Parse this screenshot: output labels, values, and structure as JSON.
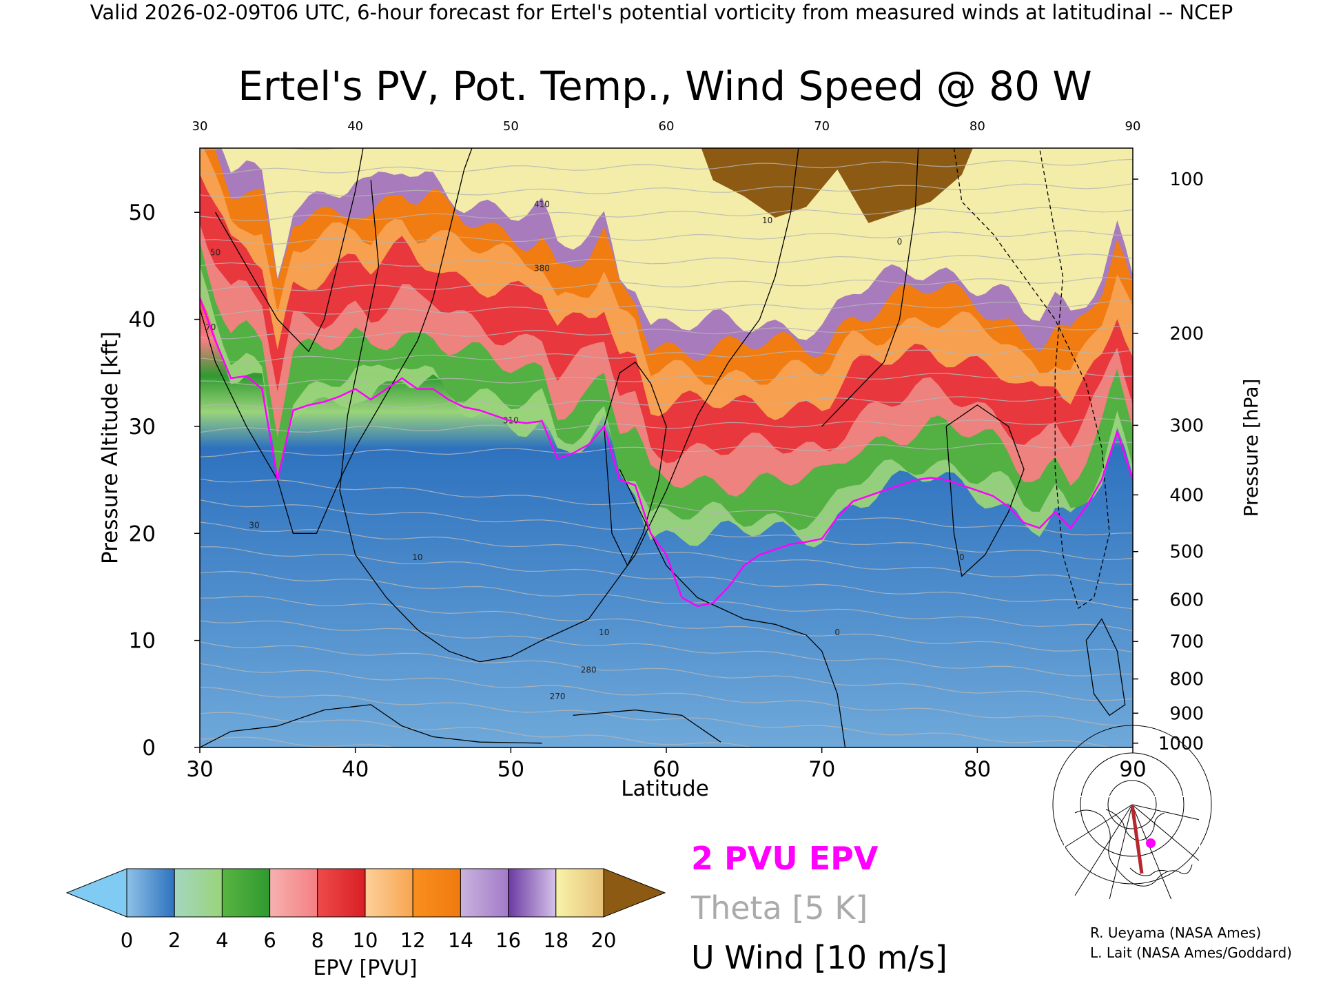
{
  "header": {
    "valid_line": "Valid 2026-02-09T06 UTC, 6-hour forecast for Ertel's potential vorticity from measured winds at latitudinal -- NCEP"
  },
  "chart_data": {
    "type": "heatmap",
    "title": "Ertel's PV, Pot. Temp., Wind Speed @ 80 W",
    "xlabel": "Latitude",
    "ylabel_left": "Pressure Altitude [kft]",
    "ylabel_right": "Pressure [hPa]",
    "xlim": [
      30,
      90
    ],
    "ylim": [
      0,
      56
    ],
    "x_ticks": [
      30,
      40,
      50,
      60,
      70,
      80,
      90
    ],
    "x_tick_labels": [
      "30",
      "40",
      "50",
      "60",
      "70",
      "80",
      "90"
    ],
    "top_x_tick_labels": [
      "30",
      "40",
      "50",
      "60",
      "70",
      "80",
      "90"
    ],
    "y_ticks": [
      0,
      10,
      20,
      30,
      40,
      50
    ],
    "y_tick_labels": [
      "0",
      "10",
      "20",
      "30",
      "40",
      "50"
    ],
    "pressure_ticks": [
      {
        "label": "100",
        "kft": 53.1
      },
      {
        "label": "200",
        "kft": 38.7
      },
      {
        "label": "300",
        "kft": 30.1
      },
      {
        "label": "400",
        "kft": 23.6
      },
      {
        "label": "500",
        "kft": 18.3
      },
      {
        "label": "600",
        "kft": 13.8
      },
      {
        "label": "700",
        "kft": 9.9
      },
      {
        "label": "800",
        "kft": 6.4
      },
      {
        "label": "900",
        "kft": 3.2
      },
      {
        "label": "1000",
        "kft": 0.4
      }
    ],
    "tropopause_2pvu_kft": [
      {
        "lat": 30,
        "kft": 42
      },
      {
        "lat": 31,
        "kft": 38
      },
      {
        "lat": 32,
        "kft": 34.5
      },
      {
        "lat": 33,
        "kft": 34.7
      },
      {
        "lat": 34,
        "kft": 33.5
      },
      {
        "lat": 35,
        "kft": 25
      },
      {
        "lat": 36,
        "kft": 31.5
      },
      {
        "lat": 37,
        "kft": 32
      },
      {
        "lat": 38,
        "kft": 32.3
      },
      {
        "lat": 39,
        "kft": 32.8
      },
      {
        "lat": 40,
        "kft": 33.5
      },
      {
        "lat": 41,
        "kft": 32.5
      },
      {
        "lat": 42,
        "kft": 33.5
      },
      {
        "lat": 43,
        "kft": 34.5
      },
      {
        "lat": 44,
        "kft": 33.5
      },
      {
        "lat": 45,
        "kft": 33.5
      },
      {
        "lat": 46,
        "kft": 32.5
      },
      {
        "lat": 47,
        "kft": 31.8
      },
      {
        "lat": 48,
        "kft": 31.5
      },
      {
        "lat": 49,
        "kft": 31
      },
      {
        "lat": 50,
        "kft": 30.5
      },
      {
        "lat": 51,
        "kft": 30.3
      },
      {
        "lat": 52,
        "kft": 30.5
      },
      {
        "lat": 53,
        "kft": 27
      },
      {
        "lat": 54,
        "kft": 27.5
      },
      {
        "lat": 55,
        "kft": 28.3
      },
      {
        "lat": 56,
        "kft": 30
      },
      {
        "lat": 57,
        "kft": 25
      },
      {
        "lat": 58,
        "kft": 24.5
      },
      {
        "lat": 59,
        "kft": 20
      },
      {
        "lat": 60,
        "kft": 18
      },
      {
        "lat": 61,
        "kft": 14
      },
      {
        "lat": 62,
        "kft": 13.2
      },
      {
        "lat": 63,
        "kft": 13.5
      },
      {
        "lat": 64,
        "kft": 15
      },
      {
        "lat": 65,
        "kft": 17
      },
      {
        "lat": 66,
        "kft": 18
      },
      {
        "lat": 67,
        "kft": 18.5
      },
      {
        "lat": 68,
        "kft": 19
      },
      {
        "lat": 69,
        "kft": 19.2
      },
      {
        "lat": 70,
        "kft": 19.5
      },
      {
        "lat": 71,
        "kft": 21.5
      },
      {
        "lat": 72,
        "kft": 23
      },
      {
        "lat": 73,
        "kft": 23.5
      },
      {
        "lat": 74,
        "kft": 24
      },
      {
        "lat": 75,
        "kft": 24.5
      },
      {
        "lat": 76,
        "kft": 25
      },
      {
        "lat": 77,
        "kft": 25.2
      },
      {
        "lat": 78,
        "kft": 25
      },
      {
        "lat": 79,
        "kft": 24.5
      },
      {
        "lat": 80,
        "kft": 24
      },
      {
        "lat": 81,
        "kft": 23.5
      },
      {
        "lat": 82,
        "kft": 22.5
      },
      {
        "lat": 83,
        "kft": 21
      },
      {
        "lat": 84,
        "kft": 20.5
      },
      {
        "lat": 85,
        "kft": 22
      },
      {
        "lat": 86,
        "kft": 20.5
      },
      {
        "lat": 87,
        "kft": 22.5
      },
      {
        "lat": 88,
        "kft": 25
      },
      {
        "lat": 89,
        "kft": 29.5
      },
      {
        "lat": 90,
        "kft": 25
      }
    ],
    "colorbar": {
      "label": "EPV [PVU]",
      "ticks": [
        "0",
        "2",
        "4",
        "6",
        "8",
        "10",
        "12",
        "14",
        "16",
        "18",
        "20"
      ],
      "under_color": "#80cbf3",
      "over_color": "#8c5a12",
      "bins": [
        {
          "from": 0,
          "to": 2,
          "colors": [
            "#8ec1e6",
            "#2e72bf"
          ]
        },
        {
          "from": 2,
          "to": 4,
          "colors": [
            "#a3d6c0",
            "#9ad47a"
          ]
        },
        {
          "from": 4,
          "to": 6,
          "colors": [
            "#59b442",
            "#2f9a30"
          ]
        },
        {
          "from": 6,
          "to": 8,
          "colors": [
            "#f6b1b0",
            "#f57f83"
          ]
        },
        {
          "from": 8,
          "to": 10,
          "colors": [
            "#ee4b4b",
            "#d81f24"
          ]
        },
        {
          "from": 10,
          "to": 12,
          "colors": [
            "#fcd09a",
            "#f8a550"
          ]
        },
        {
          "from": 12,
          "to": 14,
          "colors": [
            "#f98f1e",
            "#f07a0e"
          ]
        },
        {
          "from": 14,
          "to": 16,
          "colors": [
            "#c9b3de",
            "#a37bc7"
          ]
        },
        {
          "from": 16,
          "to": 18,
          "colors": [
            "#6b3ba2",
            "#d6c2ea"
          ]
        },
        {
          "from": 18,
          "to": 20,
          "colors": [
            "#f7f3a8",
            "#e8c27a"
          ]
        }
      ]
    },
    "legend": {
      "pv": "2 PVU EPV",
      "theta": "Theta [5 K]",
      "wind": "U Wind [10 m/s]",
      "pv_color": "#ff00ff",
      "theta_color": "#aaaaaa",
      "wind_color": "#000000"
    },
    "contour_labels": [
      "10",
      "0",
      "30",
      "50",
      "70",
      "270",
      "280",
      "310",
      "380",
      "410"
    ]
  },
  "credits": {
    "line1": "R. Ueyama (NASA Ames)",
    "line2": "L. Lait (NASA Ames/Goddard)"
  },
  "inset_map": {
    "path_color": "#b5282e",
    "marker_color": "#ff00ff"
  }
}
